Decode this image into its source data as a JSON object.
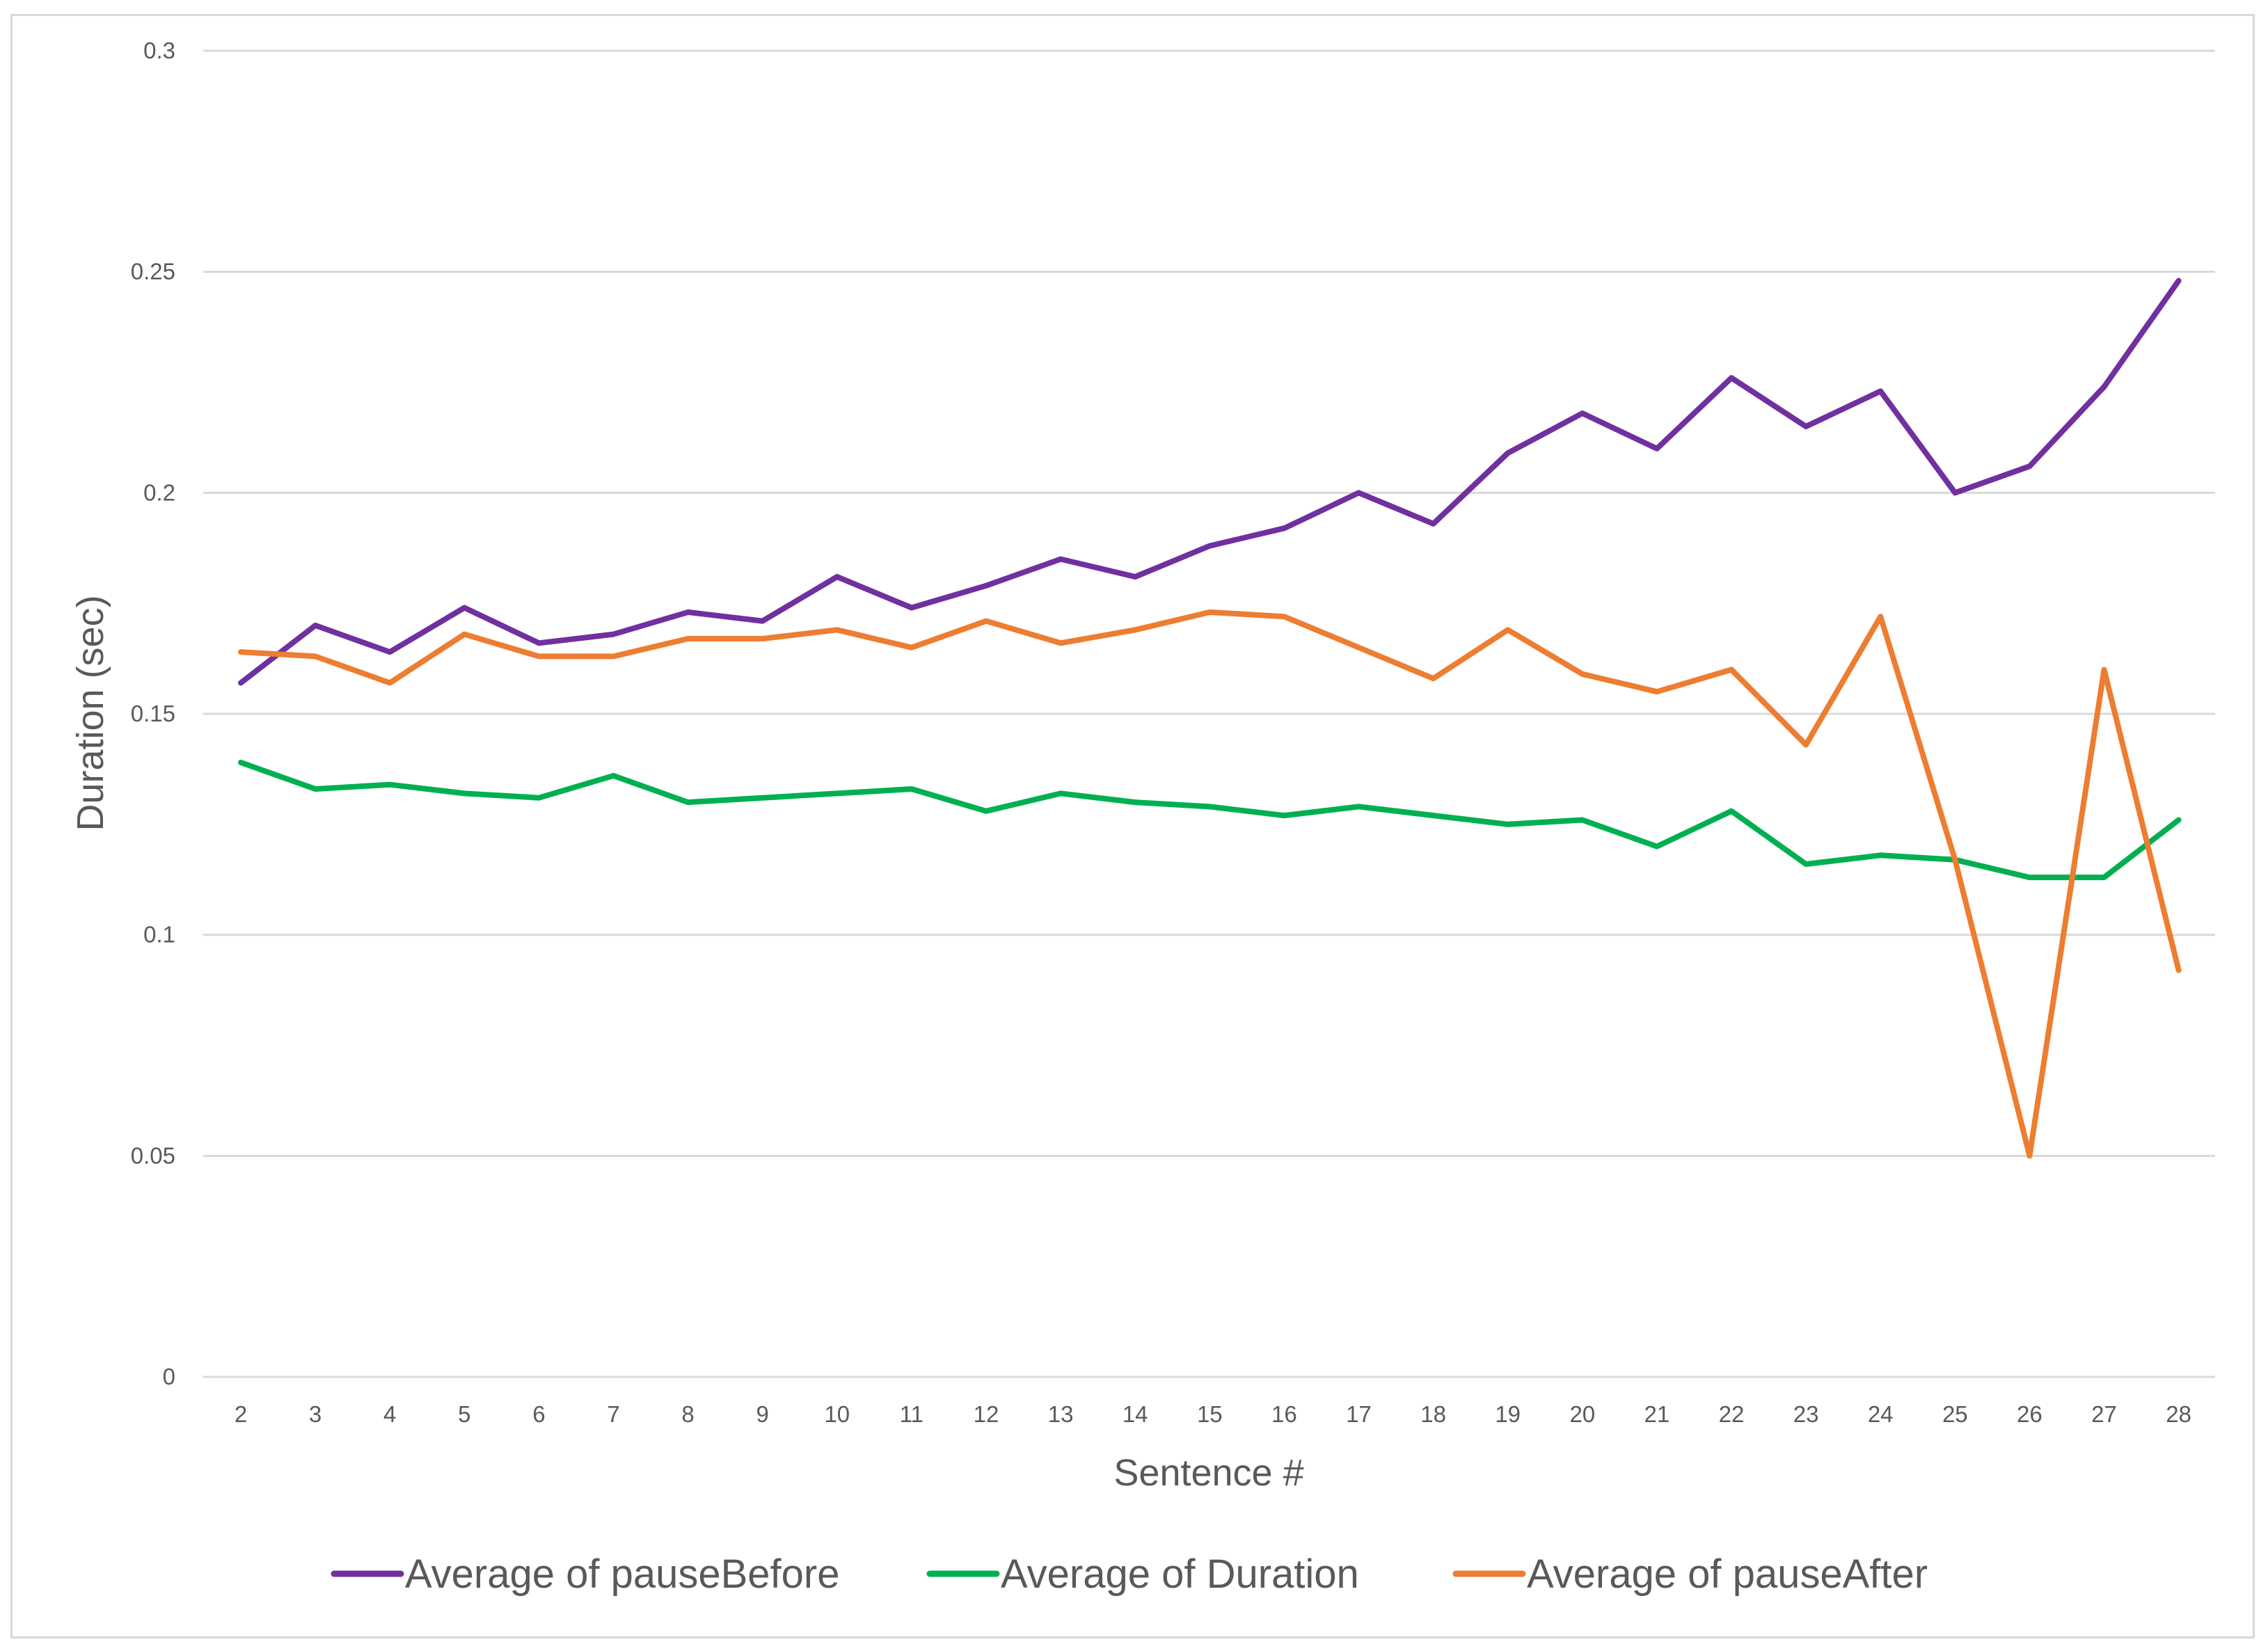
{
  "chart_data": {
    "type": "line",
    "title": "",
    "xlabel": "Sentence #",
    "ylabel": "Duration (sec)",
    "ylim": [
      0,
      0.3
    ],
    "y_ticks": [
      "0",
      "0.05",
      "0.1",
      "0.15",
      "0.2",
      "0.25",
      "0.3"
    ],
    "y_tick_values": [
      0,
      0.05,
      0.1,
      0.15,
      0.2,
      0.25,
      0.3
    ],
    "categories": [
      "2",
      "3",
      "4",
      "5",
      "6",
      "7",
      "8",
      "9",
      "10",
      "11",
      "12",
      "13",
      "14",
      "15",
      "16",
      "17",
      "18",
      "19",
      "20",
      "21",
      "22",
      "23",
      "24",
      "25",
      "26",
      "27",
      "28"
    ],
    "grid": true,
    "legend_position": "bottom",
    "series": [
      {
        "name": "Average of pauseBefore",
        "color": "#7030a0",
        "values": [
          0.157,
          0.17,
          0.164,
          0.174,
          0.166,
          0.168,
          0.173,
          0.171,
          0.181,
          0.174,
          0.179,
          0.185,
          0.181,
          0.188,
          0.192,
          0.2,
          0.193,
          0.209,
          0.218,
          0.21,
          0.226,
          0.215,
          0.223,
          0.2,
          0.206,
          0.224,
          0.248
        ]
      },
      {
        "name": "Average of Duration",
        "color": "#00b050",
        "values": [
          0.139,
          0.133,
          0.134,
          0.132,
          0.131,
          0.136,
          0.13,
          0.131,
          0.132,
          0.133,
          0.128,
          0.132,
          0.13,
          0.129,
          0.127,
          0.129,
          0.127,
          0.125,
          0.126,
          0.12,
          0.128,
          0.116,
          0.118,
          0.117,
          0.113,
          0.113,
          0.126
        ]
      },
      {
        "name": "Average of pauseAfter",
        "color": "#ed7d31",
        "values": [
          0.164,
          0.163,
          0.157,
          0.168,
          0.163,
          0.163,
          0.167,
          0.167,
          0.169,
          0.165,
          0.171,
          0.166,
          0.169,
          0.173,
          0.172,
          0.165,
          0.158,
          0.169,
          0.159,
          0.155,
          0.16,
          0.143,
          0.172,
          0.117,
          0.05,
          0.16,
          0.092
        ]
      }
    ]
  }
}
